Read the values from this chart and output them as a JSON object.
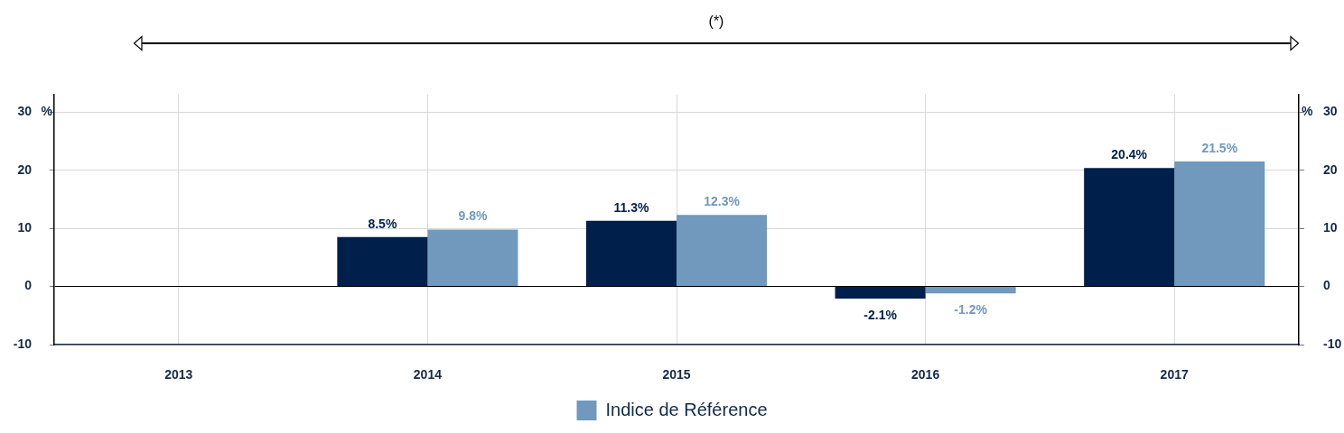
{
  "chart_data": {
    "type": "bar",
    "annotations": [
      "(*)"
    ],
    "ylabel": "%",
    "y2label": "%",
    "categories": [
      "2013",
      "2014",
      "2015",
      "2016",
      "2017"
    ],
    "series": [
      {
        "color": "#001f4a",
        "values": [
          null,
          8.5,
          11.3,
          -2.1,
          20.4
        ],
        "value_labels": [
          null,
          "8.5%",
          "11.3%",
          "-2.1%",
          "20.4%"
        ]
      },
      {
        "name": "Indice de Référence",
        "color": "#7099bd",
        "values": [
          null,
          9.8,
          12.3,
          -1.2,
          21.5
        ],
        "value_labels": [
          null,
          "9.8%",
          "12.3%",
          "-1.2%",
          "21.5%"
        ]
      }
    ],
    "ylim": [
      -10,
      33
    ],
    "yticks": [
      -10,
      0,
      10,
      20,
      30
    ],
    "y2lim": [
      -10,
      33
    ],
    "y2ticks": [
      -10,
      0,
      10,
      20,
      30
    ],
    "grid": true,
    "legend": "bottom"
  }
}
